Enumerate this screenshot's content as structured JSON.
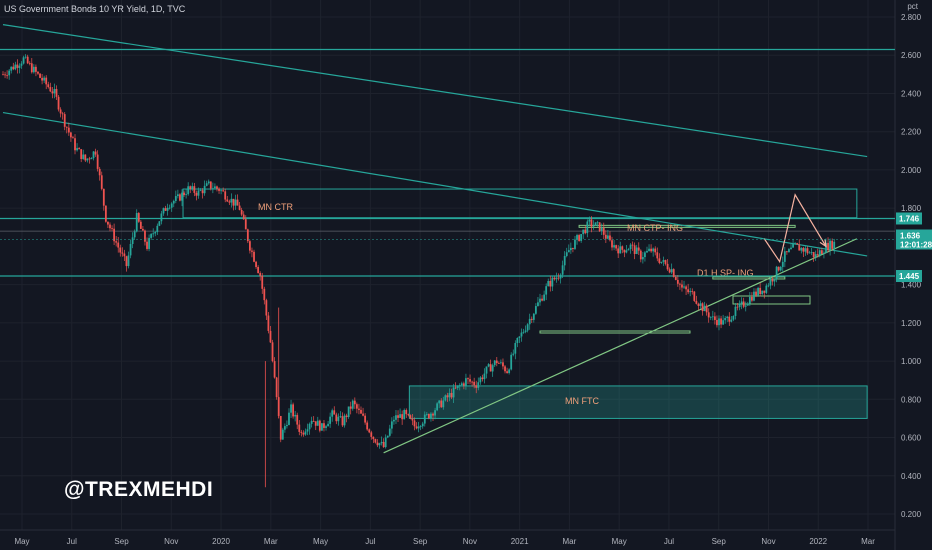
{
  "header": {
    "title": "US Government Bonds 10 YR Yield, 1D, TVC"
  },
  "unit_label": "pct",
  "watermark": "@TREXMEHDI",
  "colors": {
    "background": "#131722",
    "up": "#26a69a",
    "down": "#ef5350",
    "teal_line": "#26a69a",
    "green_line": "#81c784",
    "zone_label": "#f0a07a",
    "badge": "#26a69a",
    "axis_text": "#b2b5be",
    "projection": "#f6b2a0"
  },
  "chart_data": {
    "type": "candlestick",
    "y_range": [
      0.1,
      2.85
    ],
    "y_ticks": [
      {
        "label": "2.800",
        "v": 2.8
      },
      {
        "label": "2.600",
        "v": 2.6
      },
      {
        "label": "2.400",
        "v": 2.4
      },
      {
        "label": "2.200",
        "v": 2.2
      },
      {
        "label": "2.000",
        "v": 2.0
      },
      {
        "label": "1.800",
        "v": 1.8
      },
      {
        "label": "1.400",
        "v": 1.4
      },
      {
        "label": "1.200",
        "v": 1.2
      },
      {
        "label": "1.000",
        "v": 1.0
      },
      {
        "label": "0.800",
        "v": 0.8
      },
      {
        "label": "0.600",
        "v": 0.6
      },
      {
        "label": "0.400",
        "v": 0.4
      },
      {
        "label": "0.200",
        "v": 0.2
      }
    ],
    "x_ticks": [
      "May",
      "Jul",
      "Sep",
      "Nov",
      "2020",
      "Mar",
      "May",
      "Jul",
      "Sep",
      "Nov",
      "2021",
      "Mar",
      "May",
      "Jul",
      "Sep",
      "Nov",
      "2022",
      "Mar"
    ],
    "price_path": [
      [
        0,
        2.5
      ],
      [
        2,
        2.58
      ],
      [
        3,
        2.52
      ],
      [
        5,
        2.4
      ],
      [
        6,
        2.25
      ],
      [
        7,
        2.12
      ],
      [
        8,
        2.05
      ],
      [
        9,
        2.1
      ],
      [
        10,
        1.75
      ],
      [
        11,
        1.62
      ],
      [
        12,
        1.5
      ],
      [
        13,
        1.75
      ],
      [
        14,
        1.6
      ],
      [
        15,
        1.72
      ],
      [
        16,
        1.82
      ],
      [
        17,
        1.85
      ],
      [
        18,
        1.9
      ],
      [
        19,
        1.88
      ],
      [
        20,
        1.92
      ],
      [
        21,
        1.9
      ],
      [
        22,
        1.85
      ],
      [
        23,
        1.8
      ],
      [
        24,
        1.6
      ],
      [
        25,
        1.45
      ],
      [
        26,
        1.1
      ],
      [
        27,
        0.6
      ],
      [
        28,
        0.75
      ],
      [
        29,
        0.62
      ],
      [
        30,
        0.7
      ],
      [
        31,
        0.65
      ],
      [
        32,
        0.72
      ],
      [
        33,
        0.68
      ],
      [
        34,
        0.78
      ],
      [
        35,
        0.7
      ],
      [
        36,
        0.6
      ],
      [
        37,
        0.55
      ],
      [
        38,
        0.7
      ],
      [
        39,
        0.72
      ],
      [
        40,
        0.66
      ],
      [
        41,
        0.7
      ],
      [
        42,
        0.75
      ],
      [
        43,
        0.8
      ],
      [
        44,
        0.85
      ],
      [
        45,
        0.9
      ],
      [
        46,
        0.88
      ],
      [
        47,
        0.95
      ],
      [
        48,
        1.0
      ],
      [
        49,
        0.95
      ],
      [
        50,
        1.1
      ],
      [
        51,
        1.2
      ],
      [
        52,
        1.3
      ],
      [
        53,
        1.4
      ],
      [
        54,
        1.45
      ],
      [
        55,
        1.58
      ],
      [
        56,
        1.65
      ],
      [
        57,
        1.72
      ],
      [
        58,
        1.7
      ],
      [
        59,
        1.62
      ],
      [
        60,
        1.58
      ],
      [
        61,
        1.6
      ],
      [
        62,
        1.55
      ],
      [
        63,
        1.58
      ],
      [
        64,
        1.52
      ],
      [
        65,
        1.48
      ],
      [
        66,
        1.38
      ],
      [
        67,
        1.35
      ],
      [
        68,
        1.28
      ],
      [
        69,
        1.22
      ],
      [
        70,
        1.2
      ],
      [
        71,
        1.25
      ],
      [
        72,
        1.3
      ],
      [
        73,
        1.35
      ],
      [
        74,
        1.38
      ],
      [
        75,
        1.45
      ],
      [
        76,
        1.55
      ],
      [
        77,
        1.6
      ],
      [
        78,
        1.58
      ],
      [
        79,
        1.55
      ],
      [
        80,
        1.6
      ],
      [
        81,
        1.62
      ]
    ],
    "last_price": 1.636,
    "last_price_label": "1.636",
    "countdown_label": "12:01:28",
    "level_badges": [
      {
        "label": "1.746",
        "v": 1.746
      },
      {
        "label": "1.445",
        "v": 1.445
      }
    ],
    "zones": [
      {
        "label": "MN CTR",
        "x0": 17.5,
        "x1": 83,
        "y0": 1.75,
        "y1": 1.9
      },
      {
        "label": "MN FTC",
        "x0": 39.5,
        "x1": 84,
        "y0": 0.7,
        "y1": 0.87
      },
      {
        "label": "MN CTP- ING",
        "x0": 56,
        "x1": 77,
        "y0": 1.7,
        "y1": 1.71
      },
      {
        "label": "D1 H SP- ING",
        "x0": 69,
        "x1": 76,
        "y0": 1.43,
        "y1": 1.44
      }
    ],
    "horizontal_levels": [
      2.63,
      1.746,
      1.445
    ],
    "trendlines": [
      {
        "x0": 0,
        "y0": 2.76,
        "x1": 84,
        "y1": 2.07
      },
      {
        "x0": 0,
        "y0": 2.3,
        "x1": 84,
        "y1": 1.55
      },
      {
        "x0": 37,
        "y0": 0.52,
        "x1": 83,
        "y1": 1.64
      }
    ],
    "projection": [
      [
        74,
        1.64
      ],
      [
        75.5,
        1.52
      ],
      [
        77,
        1.87
      ],
      [
        80,
        1.6
      ]
    ],
    "x_range": [
      0,
      87
    ]
  }
}
